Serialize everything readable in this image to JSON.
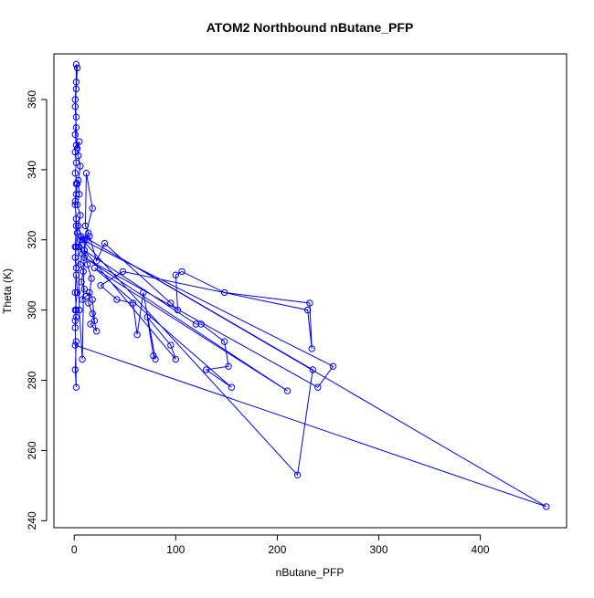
{
  "chart_data": {
    "type": "line",
    "title": "ATOM2 Northbound nButane_PFP",
    "xlabel": "nButane_PFP",
    "ylabel": "Theta (K)",
    "xlim": [
      -20,
      485
    ],
    "ylim": [
      238,
      373
    ],
    "x_ticks": [
      0,
      100,
      200,
      300,
      400
    ],
    "y_ticks": [
      240,
      260,
      280,
      300,
      320,
      340,
      360
    ],
    "grid": false,
    "legend": "none",
    "series": [
      {
        "color": "#0000ff",
        "marker": "open-circle",
        "points": [
          [
            1,
            295
          ],
          [
            2,
            298
          ],
          [
            1,
            300
          ],
          [
            3,
            305
          ],
          [
            2,
            310
          ],
          [
            1,
            315
          ],
          [
            2,
            318
          ],
          [
            3,
            322
          ],
          [
            2,
            326
          ],
          [
            1,
            330
          ],
          [
            2,
            333
          ],
          [
            3,
            336
          ],
          [
            1,
            339
          ],
          [
            2,
            342
          ],
          [
            1,
            345
          ],
          [
            2,
            347
          ],
          [
            1,
            350
          ],
          [
            2,
            355
          ],
          [
            1,
            360
          ],
          [
            2,
            365
          ],
          [
            2,
            370
          ],
          [
            3,
            369
          ],
          [
            2,
            363
          ],
          [
            1,
            358
          ],
          [
            2,
            352
          ],
          [
            3,
            346
          ],
          [
            5,
            348
          ],
          [
            4,
            344
          ],
          [
            6,
            341
          ],
          [
            4,
            337
          ],
          [
            5,
            333
          ],
          [
            3,
            330
          ],
          [
            6,
            327
          ],
          [
            4,
            324
          ],
          [
            7,
            321
          ],
          [
            5,
            318
          ],
          [
            8,
            316
          ],
          [
            6,
            313
          ],
          [
            9,
            311
          ],
          [
            7,
            308
          ],
          [
            10,
            306
          ],
          [
            8,
            303
          ],
          [
            12,
            304
          ],
          [
            15,
            305
          ],
          [
            18,
            303
          ],
          [
            20,
            297
          ],
          [
            16,
            296
          ],
          [
            22,
            294
          ],
          [
            18,
            299
          ],
          [
            14,
            302
          ],
          [
            17,
            309
          ],
          [
            13,
            313
          ],
          [
            10,
            317
          ],
          [
            12,
            320
          ],
          [
            14,
            322
          ],
          [
            11,
            324
          ],
          [
            12,
            339
          ],
          [
            18,
            329
          ],
          [
            10,
            320
          ],
          [
            8,
            286
          ],
          [
            5,
            300
          ],
          [
            4,
            318
          ],
          [
            6,
            320
          ],
          [
            15,
            321
          ],
          [
            22,
            314
          ],
          [
            30,
            319
          ],
          [
            95,
            302
          ],
          [
            102,
            300
          ],
          [
            100,
            310
          ],
          [
            106,
            311
          ],
          [
            148,
            305
          ],
          [
            232,
            302
          ],
          [
            234,
            289
          ],
          [
            230,
            300
          ],
          [
            48,
            311
          ],
          [
            26,
            307
          ],
          [
            42,
            303
          ],
          [
            58,
            302
          ],
          [
            62,
            293
          ],
          [
            68,
            305
          ],
          [
            80,
            286
          ],
          [
            78,
            287
          ],
          [
            72,
            298
          ],
          [
            95,
            290
          ],
          [
            100,
            286
          ],
          [
            10,
            317
          ],
          [
            120,
            296
          ],
          [
            125,
            296
          ],
          [
            148,
            291
          ],
          [
            152,
            284
          ],
          [
            130,
            283
          ],
          [
            155,
            278
          ],
          [
            20,
            312
          ],
          [
            210,
            277
          ],
          [
            10,
            315
          ],
          [
            240,
            278
          ],
          [
            255,
            284
          ],
          [
            8,
            320
          ],
          [
            220,
            253
          ],
          [
            235,
            283
          ],
          [
            3,
            322
          ],
          [
            465,
            244
          ],
          [
            1,
            290
          ],
          [
            2,
            291
          ],
          [
            1,
            283
          ],
          [
            2,
            278
          ],
          [
            1,
            297
          ],
          [
            2,
            300
          ],
          [
            1,
            305
          ],
          [
            2,
            312
          ],
          [
            1,
            318
          ],
          [
            2,
            324
          ],
          [
            1,
            331
          ],
          [
            2,
            336
          ]
        ]
      }
    ]
  }
}
